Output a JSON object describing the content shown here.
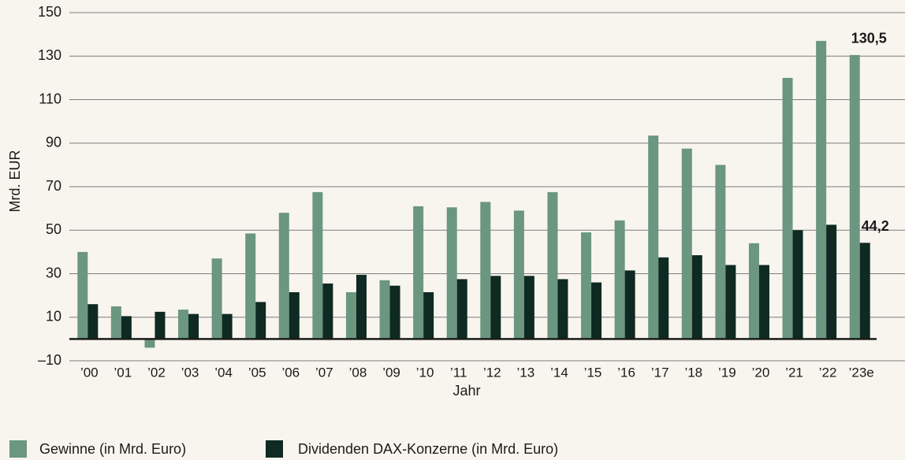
{
  "chart_data": {
    "type": "bar",
    "y_label": "Mrd. EUR",
    "x_label": "Jahr",
    "categories": [
      "’00",
      "’01",
      "’02",
      "’03",
      "’04",
      "’05",
      "’06",
      "’07",
      "’08",
      "’09",
      "’10",
      "’11",
      "’12",
      "’13",
      "’14",
      "’15",
      "’16",
      "’17",
      "’18",
      "’19",
      "’20",
      "’21",
      "’22",
      "’23e"
    ],
    "series": [
      {
        "name": "Gewinne (in Mrd. Euro)",
        "color": "#6b9680",
        "values": [
          40,
          15,
          -4,
          13.5,
          37,
          48.5,
          58,
          67.5,
          21.5,
          27,
          61,
          60.5,
          63,
          59,
          67.5,
          49,
          54.5,
          93.5,
          87.5,
          80,
          44,
          120,
          137,
          130.5
        ],
        "value_labels": [
          null,
          null,
          null,
          null,
          null,
          null,
          null,
          null,
          null,
          null,
          null,
          null,
          null,
          null,
          null,
          null,
          null,
          null,
          null,
          null,
          null,
          null,
          null,
          "130,5"
        ]
      },
      {
        "name": "Dividenden DAX-Konzerne (in Mrd. Euro)",
        "color": "#0e2a22",
        "values": [
          16,
          10.5,
          12.5,
          11.5,
          11.5,
          17,
          21.5,
          25.5,
          29.5,
          24.5,
          21.5,
          27.5,
          29,
          29,
          27.5,
          26,
          31.5,
          37.5,
          38.5,
          34,
          34,
          50,
          52.5,
          44.2
        ],
        "value_labels": [
          null,
          null,
          null,
          null,
          null,
          null,
          null,
          null,
          null,
          null,
          null,
          null,
          null,
          null,
          null,
          null,
          null,
          null,
          null,
          null,
          null,
          null,
          null,
          "44,2"
        ]
      }
    ],
    "ylim": [
      -10,
      150
    ],
    "yticks": [
      {
        "value": -10,
        "label": "–10"
      },
      10,
      30,
      50,
      70,
      90,
      110,
      130,
      150
    ],
    "grid": true
  }
}
